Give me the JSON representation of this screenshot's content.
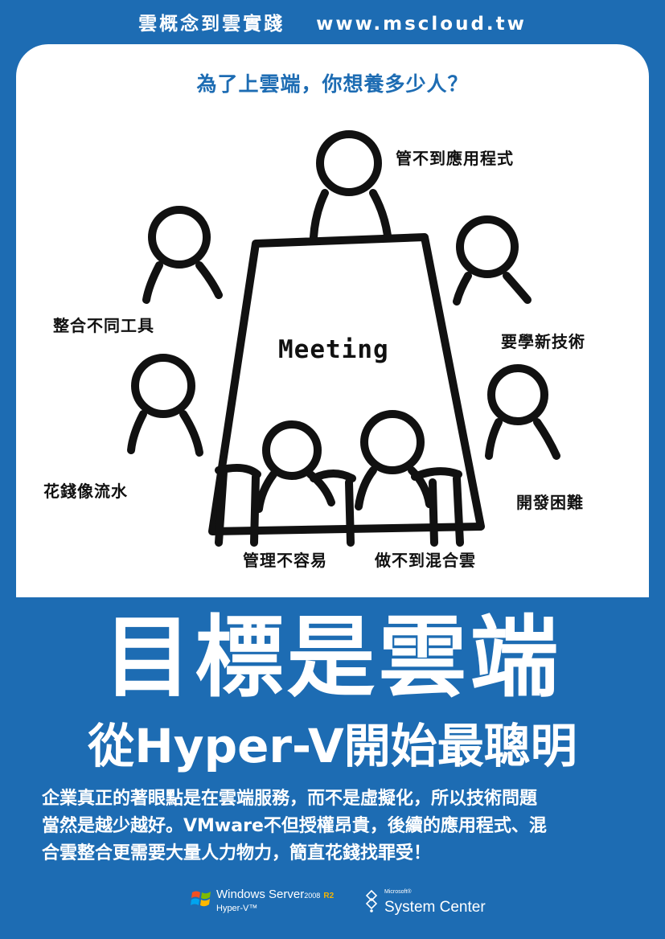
{
  "header": {
    "brand": "雲概念到雲實踐",
    "url": "www.mscloud.tw"
  },
  "question": "為了上雲端，你想養多少人？",
  "scene": {
    "table_label": "Meeting",
    "people_labels": [
      "管不到應用程式",
      "整合不同工具",
      "要學新技術",
      "花錢像流水",
      "開發困難",
      "管理不容易",
      "做不到混合雲"
    ]
  },
  "headline": {
    "line1": "目標是雲端",
    "line2": "從Hyper-V開始最聰明"
  },
  "body": [
    "企業真正的著眼點是在雲端服務，而不是虛擬化，所以技術問題",
    "當然是越少越好。VMware不但授權昂貴，後續的應用程式、混",
    "合雲整合更需要大量人力物力，簡直花錢找罪受！"
  ],
  "footer": {
    "windows_server": {
      "name": "Windows Server",
      "year": "2008",
      "edition": "R2",
      "sub": "Hyper-V™"
    },
    "system_center": {
      "vendor": "Microsoft®",
      "name": "System Center"
    }
  },
  "colors": {
    "background": "#1d6cb3",
    "panel": "#ffffff",
    "accent_text": "#1d6cb3",
    "ink": "#111111",
    "r2": "#f5b400"
  },
  "icons": [
    "windows-flag-icon",
    "system-center-logo-icon"
  ]
}
